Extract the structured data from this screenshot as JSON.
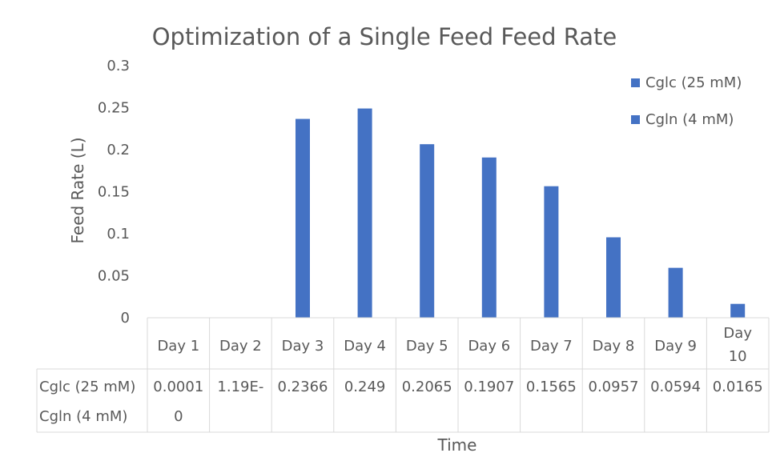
{
  "chart_data": {
    "type": "bar",
    "title": "Optimization of a Single Feed Feed Rate",
    "xlabel": "Time",
    "ylabel": "Feed Rate (L)",
    "ylim": [
      0,
      0.3
    ],
    "yticks": [
      "0.3",
      "0.25",
      "0.2",
      "0.15",
      "0.1",
      "0.05",
      "0"
    ],
    "ytick_values": [
      0.3,
      0.25,
      0.2,
      0.15,
      0.1,
      0.05,
      0
    ],
    "categories": [
      "Day 1",
      "Day 2",
      "Day 3",
      "Day 4",
      "Day 5",
      "Day 6",
      "Day 7",
      "Day 8",
      "Day 9",
      "Day 10"
    ],
    "series": [
      {
        "name": "Cglc (25 mM)",
        "color": "#4472c4",
        "values": [
          0.0001,
          1.19e-09,
          0.2366,
          0.249,
          0.2065,
          0.1907,
          0.1565,
          0.0957,
          0.0594,
          0.0165
        ],
        "table_values": [
          "0.0001",
          "1.19E-",
          "0.2366",
          "0.249",
          "0.2065",
          "0.1907",
          "0.1565",
          "0.0957",
          "0.0594",
          "0.0165"
        ]
      },
      {
        "name": "Cgln (4 mM)",
        "color": "#4472c4",
        "values": [
          0,
          null,
          null,
          null,
          null,
          null,
          null,
          null,
          null,
          null
        ],
        "table_values": [
          "0",
          "",
          "",
          "",
          "",
          "",
          "",
          "",
          "",
          ""
        ]
      }
    ],
    "legend_position": "top-right",
    "grid": false,
    "data_table": true
  }
}
